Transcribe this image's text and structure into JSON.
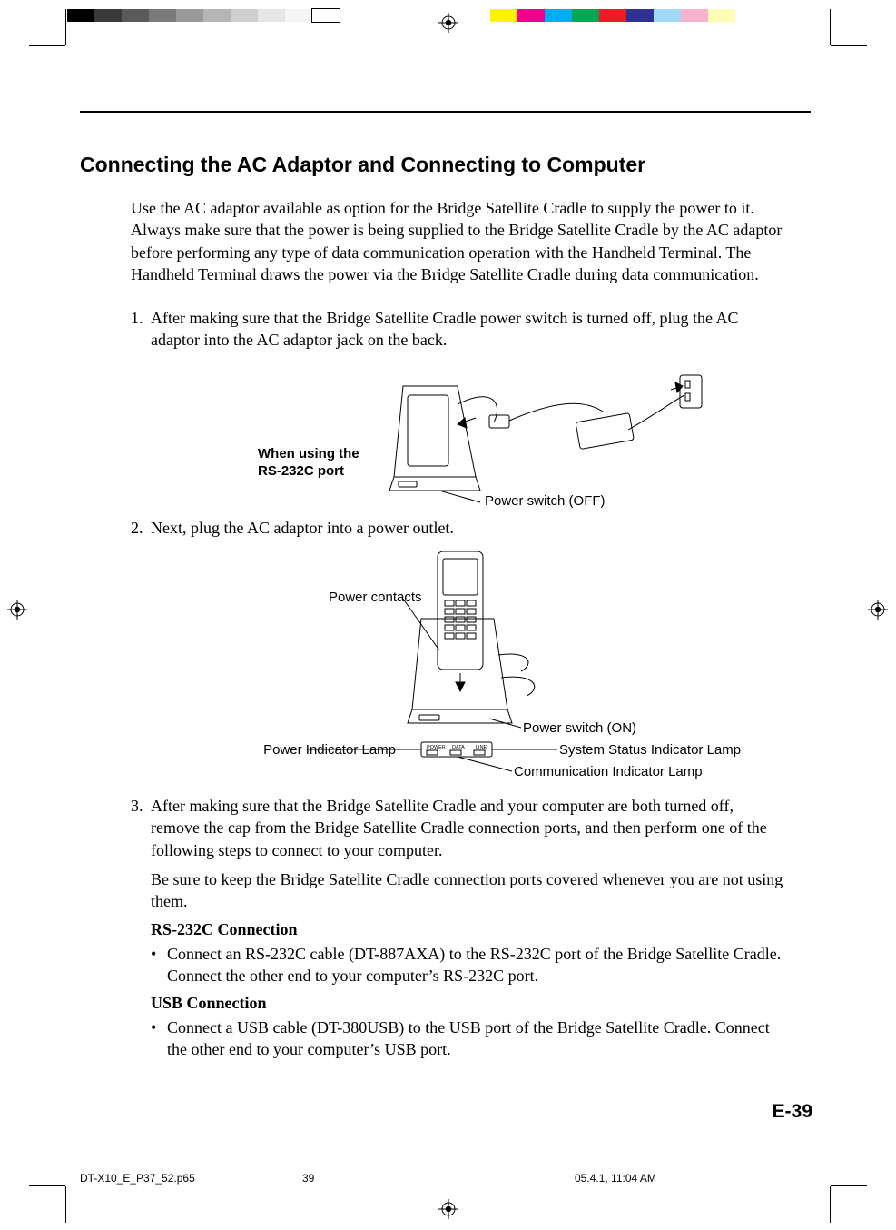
{
  "colorbar_left": [
    "#000000",
    "#3a3a3a",
    "#5a5a5a",
    "#7a7a7a",
    "#9a9a9a",
    "#b5b5b5",
    "#cecece",
    "#e6e6e6",
    "#f5f5f5",
    "#ffffff"
  ],
  "colorbar_right": [
    "#fff200",
    "#ec008c",
    "#00aeef",
    "#00a651",
    "#ed1c24",
    "#2e3192",
    "#a0d9f7",
    "#f7b2d0",
    "#fffcb5"
  ],
  "title": "Connecting the AC Adaptor and Connecting to Computer",
  "intro": "Use the AC adaptor available as option for the Bridge Satellite Cradle to supply the power to it. Always make sure that the power is being supplied to the Bridge Satellite Cradle by the AC adaptor before performing any type of data communication operation with the Handheld Terminal. The Handheld Terminal draws the power via the Bridge Satellite Cradle during data communication.",
  "step1_num": "1.",
  "step1": "After making sure that the Bridge Satellite Cradle power switch is turned off, plug the AC adaptor into the AC adaptor jack on the back.",
  "fig1": {
    "leftnote_l1": "When using the",
    "leftnote_l2": "RS-232C port",
    "bottom": "Power switch (OFF)"
  },
  "step2_num": "2.",
  "step2": "Next, plug the AC adaptor into a power outlet.",
  "fig2": {
    "power_contacts": "Power contacts",
    "power_switch_on": "Power switch (ON)",
    "power_indicator": "Power Indicator Lamp",
    "system_status": "System Status Indicator Lamp",
    "comm_indicator": "Communication Indicator Lamp",
    "led_power": "POWER",
    "led_data": "DATA",
    "led_line": "LINE"
  },
  "step3_num": "3.",
  "step3a": "After making sure that the Bridge Satellite Cradle and your computer are both turned off, remove the cap from the Bridge Satellite Cradle connection ports, and then perform one of the following steps to connect to your computer.",
  "step3b": "Be sure to keep the Bridge Satellite Cradle connection ports covered whenever you are not using them.",
  "rs232c_head": "RS-232C Connection",
  "rs232c_bullet": "Connect an RS-232C cable (DT-887AXA) to the RS-232C port of the Bridge Satellite Cradle. Connect the other end to your computer’s RS-232C port.",
  "usb_head": "USB Connection",
  "usb_bullet": "Connect a USB cable (DT-380USB) to the USB port of the Bridge Satellite Cradle. Connect the other end to your computer’s USB port.",
  "page_number": "E-39",
  "footer": {
    "filename": "DT-X10_E_P37_52.p65",
    "page": "39",
    "timestamp": "05.4.1, 11:04 AM"
  }
}
